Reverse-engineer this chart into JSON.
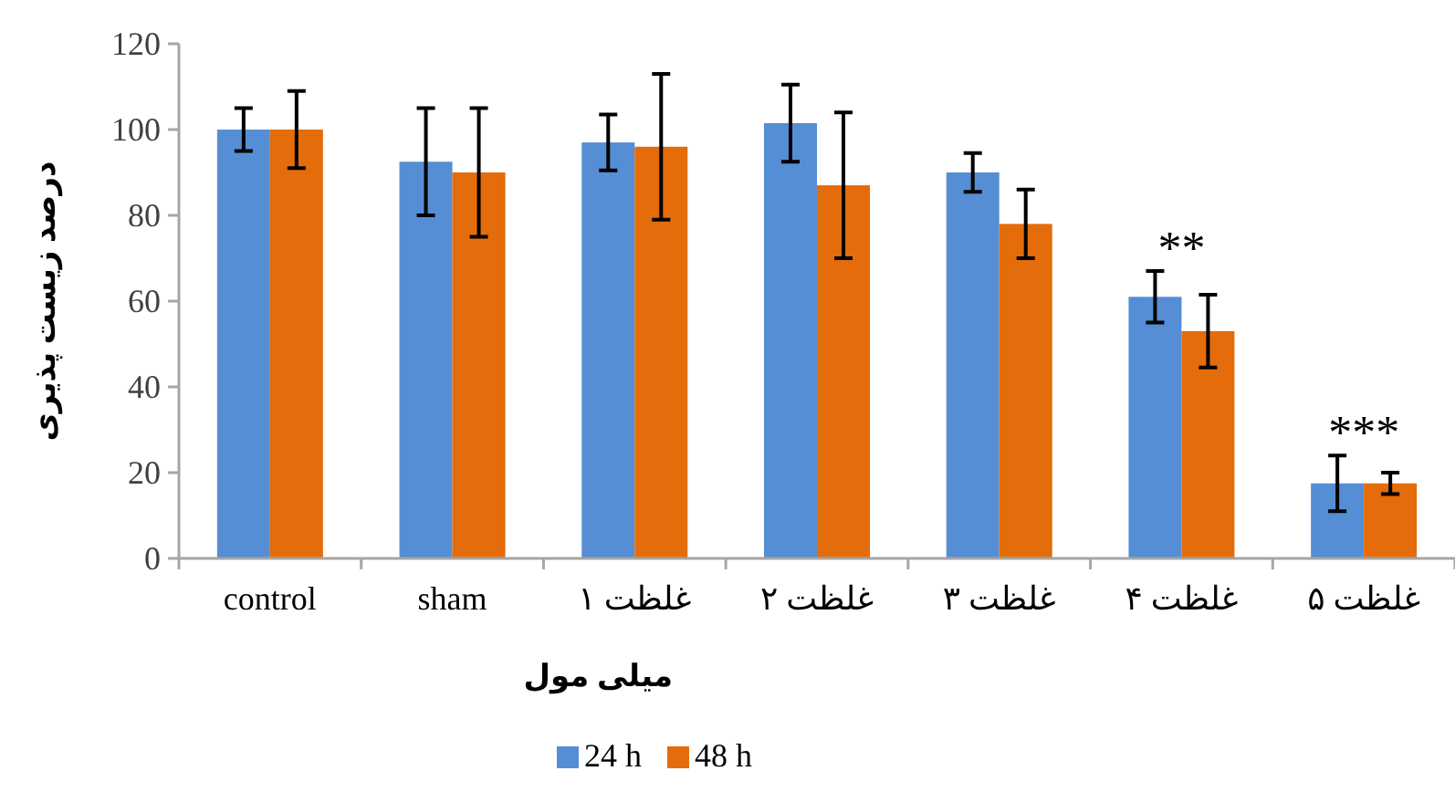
{
  "chart_data": {
    "type": "bar",
    "ylabel": "درصد زیست پذیری",
    "xlabel": "میلی مول",
    "categories": [
      "control",
      "sham",
      "غلظت ۱",
      "غلظت ۲",
      "غلظت ۳",
      "غلظت ۴",
      "غلظت ۵"
    ],
    "series": [
      {
        "name": "24 h",
        "color": "#558ed5",
        "values": [
          100,
          92.5,
          97,
          101.5,
          90,
          61,
          17.5
        ],
        "errors": [
          5,
          12.5,
          6.5,
          9,
          4.5,
          6,
          6.5
        ]
      },
      {
        "name": "48 h",
        "color": "#e46c0a",
        "values": [
          100,
          90,
          96,
          87,
          78,
          53,
          17.5
        ],
        "errors": [
          9,
          15,
          17,
          17,
          8,
          8.5,
          2.5
        ]
      }
    ],
    "ylim": [
      0,
      120
    ],
    "yticks": [
      0,
      20,
      40,
      60,
      80,
      100,
      120
    ],
    "grid": false,
    "legend": "bottom",
    "annotations": [
      "**",
      "***"
    ]
  }
}
